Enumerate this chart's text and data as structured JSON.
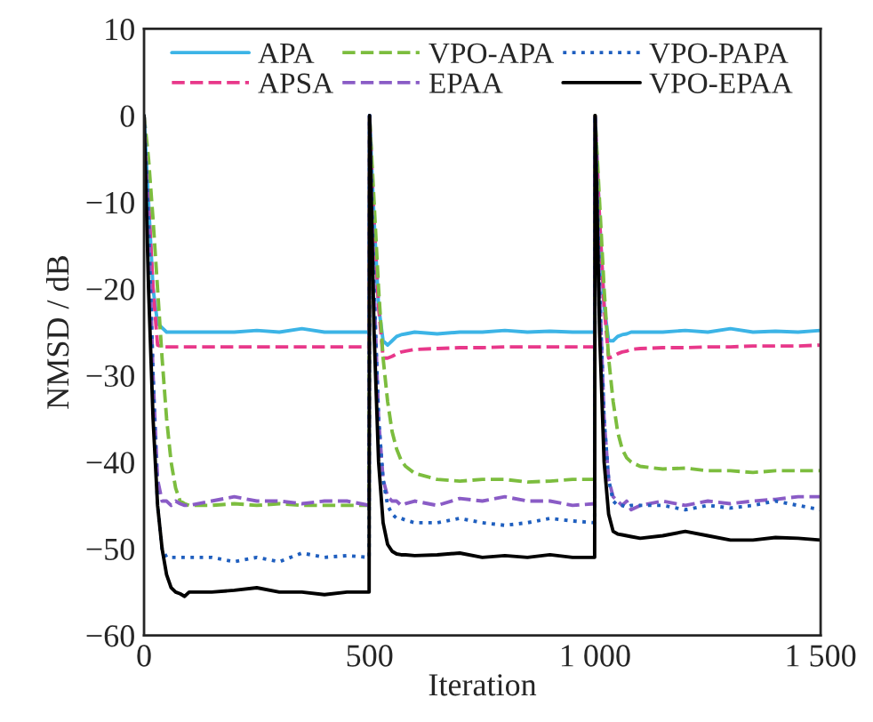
{
  "chart_data": {
    "type": "line",
    "xlabel": "Iteration",
    "ylabel": "NMSD / dB",
    "x": [
      0,
      10,
      20,
      30,
      40,
      50,
      60,
      70,
      80,
      90,
      100,
      150,
      200,
      250,
      300,
      350,
      400,
      450,
      499,
      500,
      510,
      520,
      530,
      540,
      550,
      560,
      570,
      580,
      600,
      650,
      700,
      750,
      800,
      850,
      900,
      950,
      999,
      1000,
      1010,
      1020,
      1030,
      1040,
      1050,
      1060,
      1070,
      1080,
      1100,
      1150,
      1200,
      1250,
      1300,
      1350,
      1400,
      1450,
      1500
    ],
    "series": [
      {
        "name": "APA",
        "color": "#3cb4e6",
        "line_style": "solid",
        "values": [
          0,
          -10,
          -20,
          -24,
          -24.5,
          -25,
          -25,
          -25,
          -25,
          -25,
          -25,
          -25,
          -25,
          -24.8,
          -25,
          -24.6,
          -25,
          -25,
          -25,
          0,
          -12,
          -22,
          -26,
          -26.5,
          -26,
          -25.5,
          -25.3,
          -25.2,
          -25,
          -25.2,
          -25,
          -25,
          -24.8,
          -25,
          -24.9,
          -25,
          -25,
          0,
          -12,
          -22,
          -26,
          -26,
          -25.5,
          -25.3,
          -25.2,
          -25,
          -25,
          -25,
          -24.8,
          -25,
          -24.6,
          -25,
          -24.9,
          -25,
          -24.8
        ]
      },
      {
        "name": "APSA",
        "color": "#e8388a",
        "line_style": "dashed",
        "values": [
          0,
          -10,
          -20,
          -26.5,
          -26.7,
          -26.7,
          -26.7,
          -26.7,
          -26.7,
          -26.7,
          -26.7,
          -26.7,
          -26.7,
          -26.7,
          -26.7,
          -26.7,
          -26.7,
          -26.7,
          -26.7,
          0,
          -12,
          -22,
          -28,
          -28,
          -27.8,
          -27.5,
          -27.3,
          -27.2,
          -27,
          -26.9,
          -26.8,
          -26.8,
          -26.7,
          -26.7,
          -26.7,
          -26.7,
          -26.7,
          0,
          -12,
          -22,
          -28,
          -27.8,
          -27.5,
          -27.3,
          -27.2,
          -27,
          -26.9,
          -26.8,
          -26.8,
          -26.7,
          -26.7,
          -26.6,
          -26.6,
          -26.6,
          -26.5
        ]
      },
      {
        "name": "VPO-APA",
        "color": "#7cbd3e",
        "line_style": "dashed",
        "values": [
          0,
          -5,
          -12,
          -20,
          -28,
          -35,
          -40,
          -43,
          -44.5,
          -44.8,
          -45,
          -45,
          -44.8,
          -45,
          -44.8,
          -45,
          -45,
          -45,
          -45,
          0,
          -10,
          -20,
          -28,
          -33,
          -36.5,
          -38.5,
          -39.8,
          -40.5,
          -41.3,
          -42,
          -42.2,
          -42,
          -42,
          -42.3,
          -42.2,
          -42,
          -42,
          0,
          -10,
          -20,
          -28,
          -33,
          -36.5,
          -38.5,
          -39.5,
          -40,
          -40.5,
          -40.8,
          -40.7,
          -41,
          -41,
          -41.2,
          -41,
          -41,
          -41
        ]
      },
      {
        "name": "EPAA",
        "color": "#8a5cc6",
        "line_style": "dashed",
        "values": [
          0,
          -12,
          -30,
          -42,
          -44.5,
          -44.5,
          -45,
          -44.5,
          -44.8,
          -45,
          -45,
          -44.5,
          -44,
          -44.5,
          -44.5,
          -44.8,
          -44.5,
          -44.5,
          -45,
          0,
          -20,
          -35,
          -42,
          -44,
          -44.5,
          -44.5,
          -45,
          -44.8,
          -44.5,
          -45,
          -44.2,
          -44.5,
          -44,
          -44.5,
          -44.5,
          -45,
          -44.8,
          0,
          -20,
          -35,
          -42,
          -44,
          -44.5,
          -45,
          -44.5,
          -45.5,
          -45,
          -44.5,
          -45,
          -44.5,
          -44.8,
          -44.5,
          -44.3,
          -44,
          -44
        ]
      },
      {
        "name": "VPO-PAPA",
        "color": "#1f5fbf",
        "line_style": "dotted",
        "values": [
          0,
          -12,
          -30,
          -45,
          -50,
          -51,
          -51,
          -51,
          -51,
          -51,
          -51,
          -51,
          -51.5,
          -51,
          -51.5,
          -50.5,
          -51,
          -50.8,
          -51,
          0,
          -20,
          -35,
          -42,
          -45,
          -46,
          -46.5,
          -46.5,
          -46.7,
          -47,
          -47,
          -46.5,
          -47,
          -47.3,
          -47,
          -46.5,
          -46.8,
          -47,
          0,
          -20,
          -35,
          -42,
          -44.5,
          -45,
          -45,
          -45.2,
          -45,
          -45,
          -45,
          -45.5,
          -45,
          -45.3,
          -45,
          -44.5,
          -45,
          -45.5
        ]
      },
      {
        "name": "VPO-EPAA",
        "color": "#000000",
        "line_style": "solid",
        "values": [
          0,
          -20,
          -35,
          -45,
          -50,
          -53,
          -54.5,
          -55,
          -55.2,
          -55.5,
          -55,
          -55,
          -54.8,
          -54.5,
          -55,
          -55,
          -55.3,
          -55,
          -55,
          0,
          -25,
          -40,
          -47,
          -49.5,
          -50.3,
          -50.6,
          -50.7,
          -50.7,
          -50.8,
          -50.7,
          -50.5,
          -51,
          -50.8,
          -51,
          -50.7,
          -51,
          -51,
          0,
          -25,
          -40,
          -46,
          -48,
          -48.3,
          -48.4,
          -48.5,
          -48.6,
          -48.8,
          -48.5,
          -48,
          -48.5,
          -49,
          -49,
          -48.7,
          -48.8,
          -49
        ]
      }
    ],
    "xlim": [
      0,
      1500
    ],
    "xticks": [
      0,
      500,
      {
        "value": 1000,
        "label": "1 000"
      },
      {
        "value": 1500,
        "label": "1 500"
      }
    ],
    "ylim": [
      -60,
      10
    ],
    "yticks": [
      -60,
      -50,
      -40,
      -30,
      -20,
      -10,
      0,
      10
    ],
    "legend": "top",
    "grid": false
  }
}
